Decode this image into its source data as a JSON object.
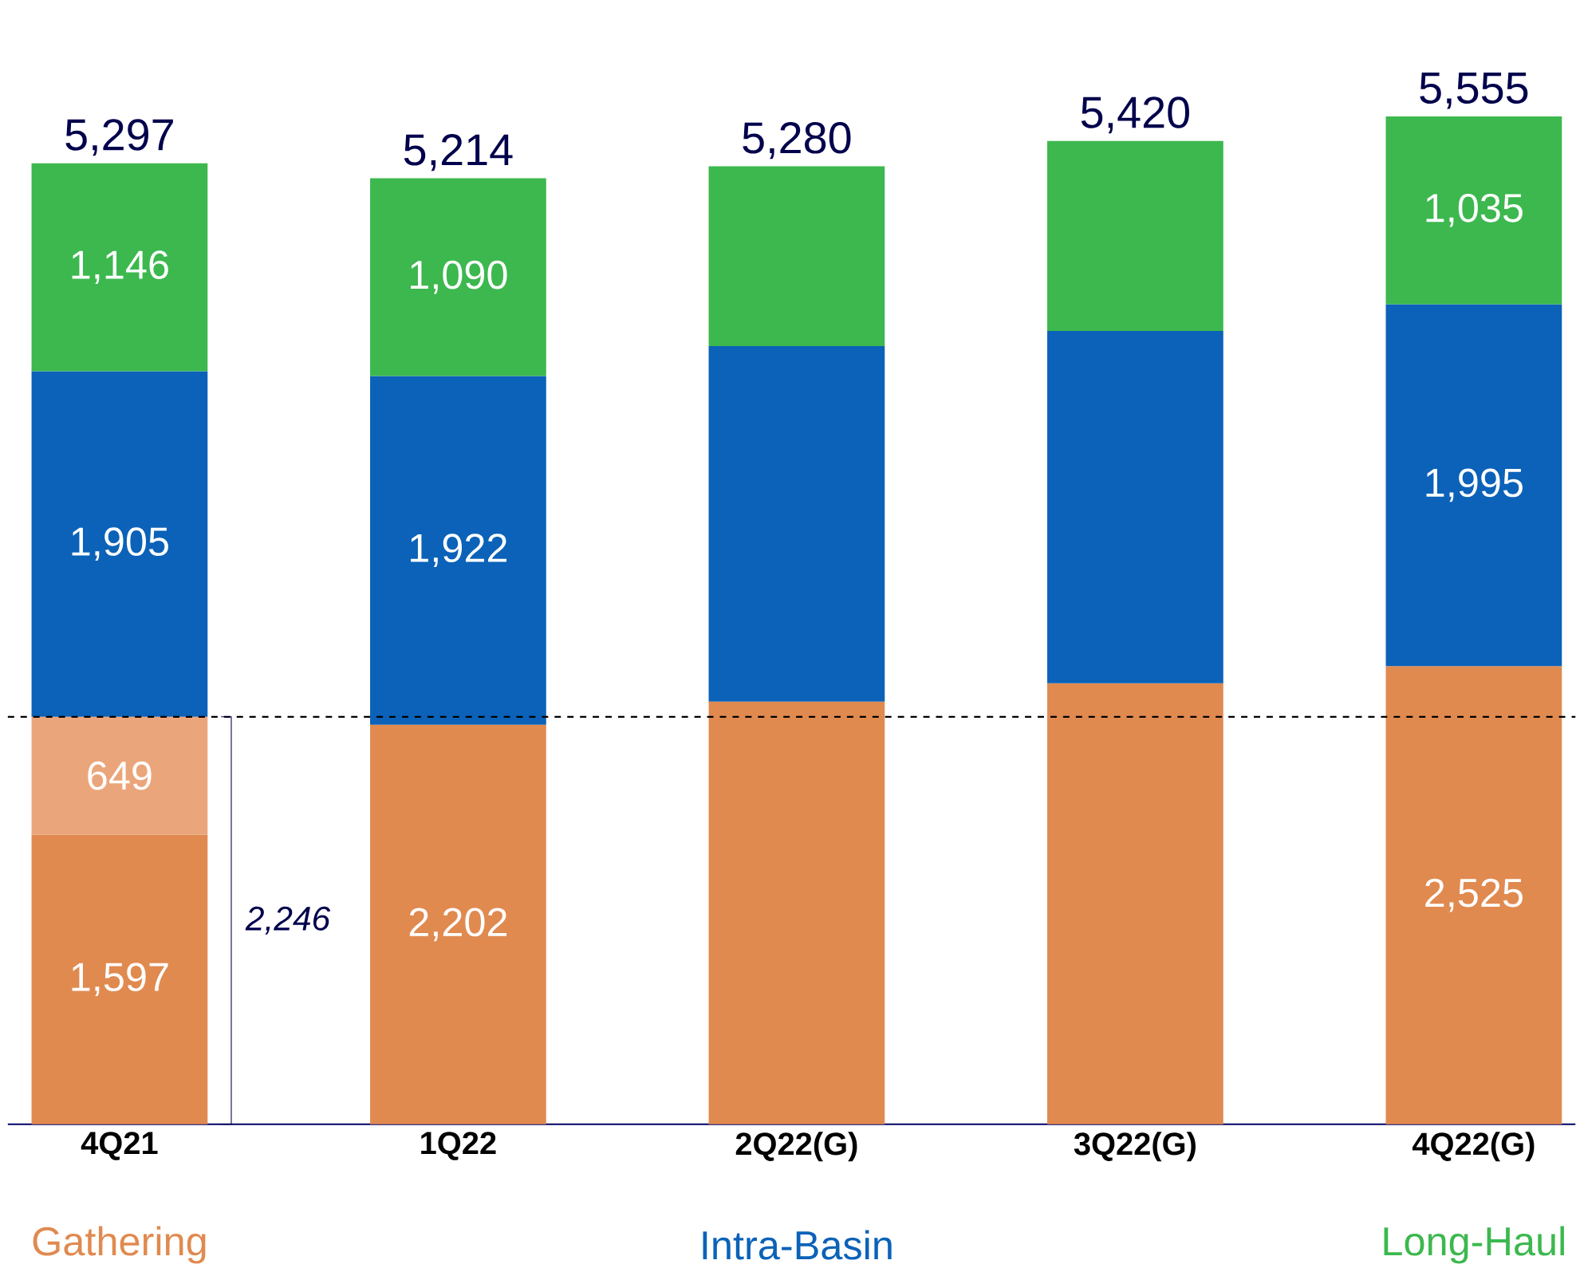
{
  "chart_data": {
    "type": "bar",
    "stacked": true,
    "categories": [
      "4Q21",
      "1Q22",
      "2Q22(G)",
      "3Q22(G)",
      "4Q22(G)"
    ],
    "series": [
      {
        "name": "Gathering",
        "color": "#e08a50",
        "values": [
          1597,
          2202,
          2330,
          2431,
          2525
        ],
        "value_labels": [
          "1,597",
          "2,202",
          null,
          null,
          "2,525"
        ]
      },
      {
        "color": "#eba57a",
        "values": [
          649,
          null,
          null,
          null,
          null
        ],
        "value_labels": [
          "649",
          null,
          null,
          null,
          null
        ]
      },
      {
        "name": "Intra-Basin",
        "color": "#0b62b8",
        "values": [
          1905,
          1922,
          1959,
          1942,
          1995
        ],
        "value_labels": [
          "1,905",
          "1,922",
          null,
          null,
          "1,995"
        ]
      },
      {
        "name": "Long-Haul",
        "color": "#3cb84e",
        "values": [
          1146,
          1090,
          991,
          1047,
          1035
        ],
        "value_labels": [
          "1,146",
          "1,090",
          null,
          null,
          "1,035"
        ]
      }
    ],
    "totals": [
      "5,297",
      "5,214",
      "5,280",
      "5,420",
      "5,555"
    ],
    "ref_lines": [
      {
        "axis": "y",
        "value": 2246,
        "color": "#000000",
        "line_style": "dashed"
      }
    ],
    "annotations": [
      "2,246"
    ],
    "legend": "bottom"
  }
}
